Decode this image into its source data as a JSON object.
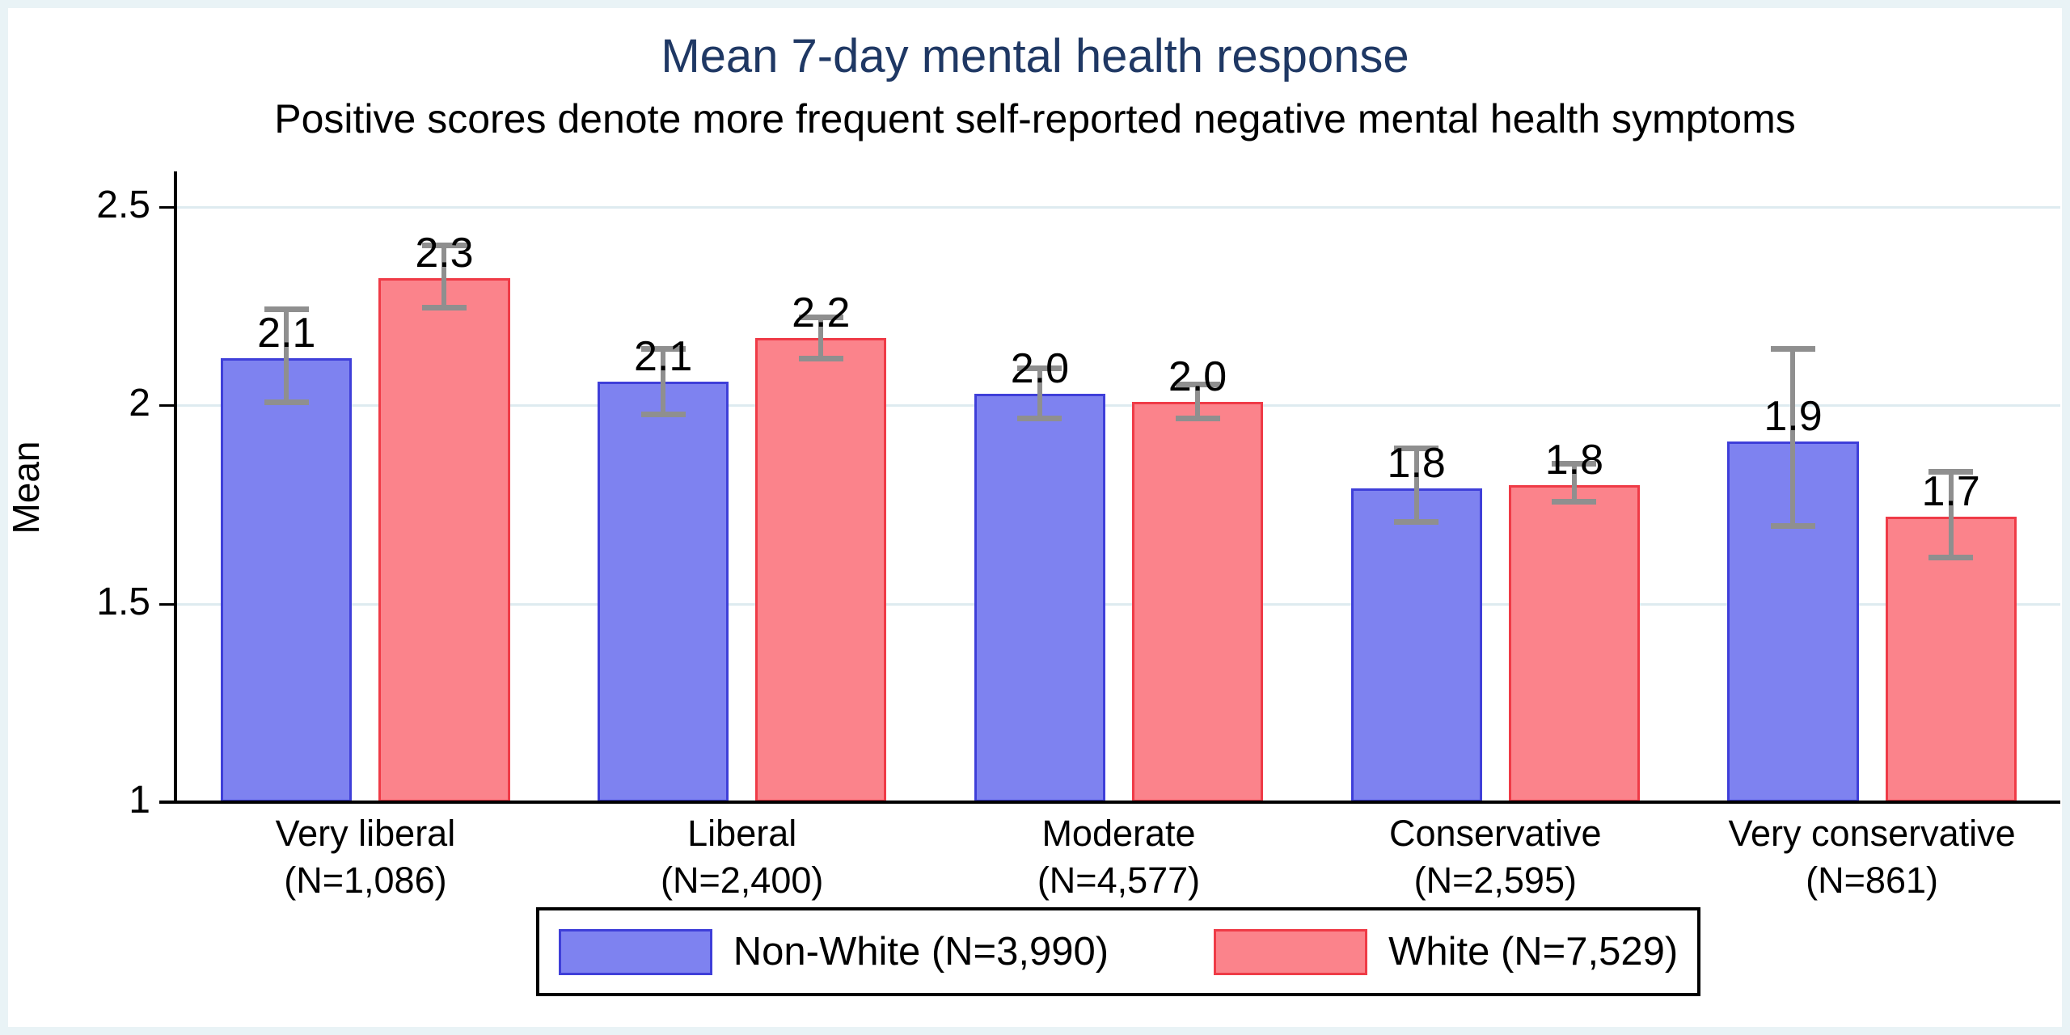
{
  "chart_data": {
    "type": "bar",
    "title": "Mean 7-day mental health response",
    "subtitle": "Positive scores denote more frequent self-reported negative mental health symptoms",
    "ylabel": "Mean",
    "xlabel": "",
    "ylim": [
      1,
      2.59
    ],
    "yticks": [
      1,
      1.5,
      2,
      2.5
    ],
    "grid": true,
    "legend_position": "bottom-center",
    "error_bars": true,
    "categories": [
      "Very liberal",
      "Liberal",
      "Moderate",
      "Conservative",
      "Very conservative"
    ],
    "category_counts": [
      "(N=1,086)",
      "(N=2,400)",
      "(N=4,577)",
      "(N=2,595)",
      "(N=861)"
    ],
    "series": [
      {
        "name": "Non-White (N=3,990)",
        "fill": "#7e82f0",
        "border": "#3f3fd9",
        "values": [
          2.12,
          2.06,
          2.03,
          1.79,
          1.91
        ],
        "labels": [
          "2.1",
          "2.1",
          "2.0",
          "1.8",
          "1.9"
        ],
        "ci_low": [
          2.0,
          1.97,
          1.96,
          1.7,
          1.69
        ],
        "ci_high": [
          2.25,
          2.15,
          2.1,
          1.9,
          2.15
        ]
      },
      {
        "name": "White (N=7,529)",
        "fill": "#fb838b",
        "border": "#ef3b47",
        "values": [
          2.32,
          2.17,
          2.01,
          1.8,
          1.72
        ],
        "labels": [
          "2.3",
          "2.2",
          "2.0",
          "1.8",
          "1.7"
        ],
        "ci_low": [
          2.24,
          2.11,
          1.96,
          1.75,
          1.61
        ],
        "ci_high": [
          2.41,
          2.23,
          2.06,
          1.86,
          1.84
        ]
      }
    ],
    "colors": {
      "title": "#1f3864",
      "frame": "#e9f3f6",
      "gridline": "#deebf0",
      "error_bar": "#8f8f8f",
      "axis": "#000000"
    }
  }
}
